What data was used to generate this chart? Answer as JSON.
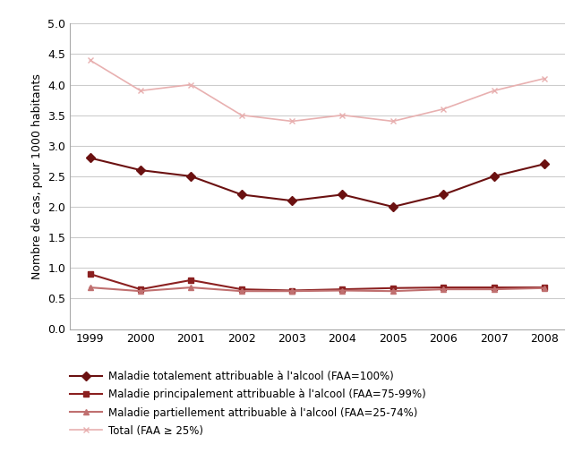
{
  "years": [
    1999,
    2000,
    2001,
    2002,
    2003,
    2004,
    2005,
    2006,
    2007,
    2008
  ],
  "series": {
    "totalement": {
      "label": "Maladie totalement attribuable à l'alcool (FAA=100%)",
      "values": [
        2.8,
        2.6,
        2.5,
        2.2,
        2.1,
        2.2,
        2.0,
        2.2,
        2.5,
        2.7
      ],
      "color": "#6b1111",
      "marker": "D",
      "markersize": 5,
      "linewidth": 1.5,
      "zorder": 3
    },
    "principalement": {
      "label": "Maladie principalement attribuable à l'alcool (FAA=75-99%)",
      "values": [
        0.9,
        0.65,
        0.8,
        0.65,
        0.63,
        0.65,
        0.67,
        0.68,
        0.68,
        0.68
      ],
      "color": "#8b2020",
      "marker": "s",
      "markersize": 5,
      "linewidth": 1.5,
      "zorder": 3
    },
    "partiellement": {
      "label": "Maladie partiellement attribuable à l'alcool (FAA=25-74%)",
      "values": [
        0.68,
        0.62,
        0.68,
        0.62,
        0.62,
        0.63,
        0.62,
        0.65,
        0.65,
        0.67
      ],
      "color": "#c07070",
      "marker": "^",
      "markersize": 5,
      "linewidth": 1.5,
      "zorder": 3
    },
    "total": {
      "label": "Total (FAA ≥ 25%)",
      "values": [
        4.4,
        3.9,
        4.0,
        3.5,
        3.4,
        3.5,
        3.4,
        3.6,
        3.9,
        4.1
      ],
      "color": "#e8b0b0",
      "marker": "x",
      "markersize": 5,
      "linewidth": 1.2,
      "zorder": 2
    }
  },
  "ylim": [
    0.0,
    5.0
  ],
  "yticks": [
    0.0,
    0.5,
    1.0,
    1.5,
    2.0,
    2.5,
    3.0,
    3.5,
    4.0,
    4.5,
    5.0
  ],
  "ylabel": "Nombre de cas, pour 1000 habitants",
  "grid_color": "#cccccc",
  "background_color": "#ffffff",
  "legend_fontsize": 8.5,
  "axis_fontsize": 9,
  "ylabel_fontsize": 9
}
